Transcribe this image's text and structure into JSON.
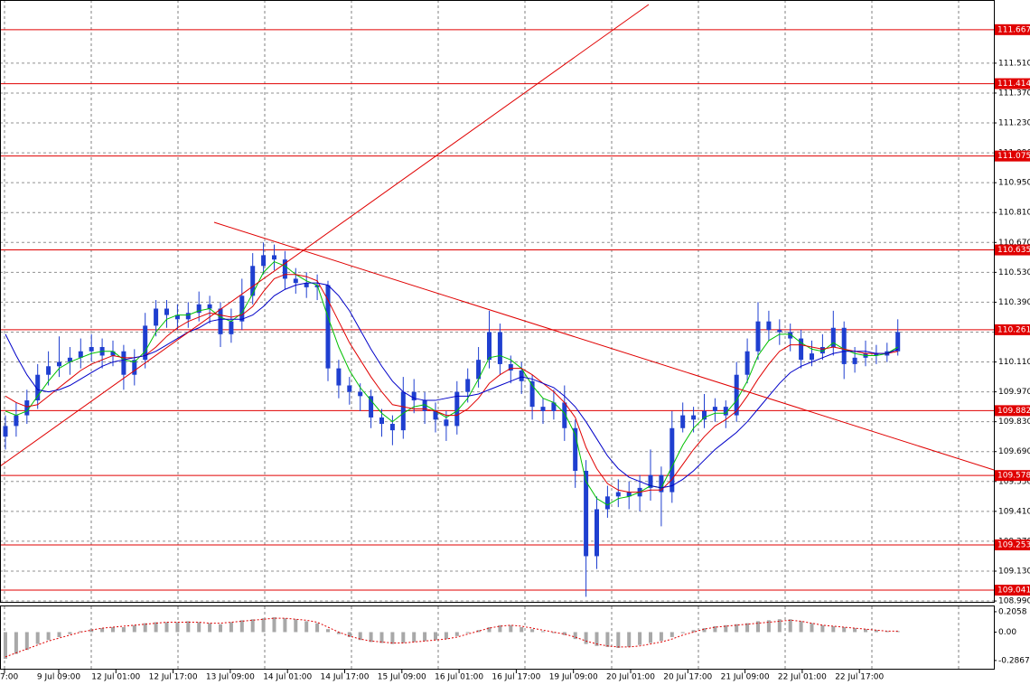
{
  "chart_data": {
    "type": "candlestick",
    "candle_color": "#1f3fd0",
    "open": [
      109.76,
      109.81,
      109.86,
      109.93,
      110.05,
      110.09,
      110.11,
      110.13,
      110.16,
      110.18,
      110.14,
      110.16,
      110.05,
      110.12,
      110.28,
      110.36,
      110.33,
      110.31,
      110.34,
      110.38,
      110.36,
      110.24,
      110.3,
      110.42,
      110.56,
      110.61,
      110.59,
      110.5,
      110.48,
      110.46,
      110.47,
      110.08,
      110.0,
      109.97,
      109.95,
      109.85,
      109.82,
      109.79,
      109.97,
      109.93,
      109.88,
      109.84,
      109.81,
      109.97,
      110.03,
      110.12,
      110.25,
      110.1,
      110.07,
      110.02,
      109.9,
      109.88,
      109.92,
      109.8,
      109.6,
      109.2,
      109.42,
      109.48,
      109.5,
      109.48,
      109.52,
      109.58,
      109.5,
      109.8,
      109.86,
      109.84,
      109.88,
      109.9,
      109.86,
      110.05,
      110.16,
      110.3,
      110.26,
      110.25,
      110.22,
      110.12,
      110.15,
      110.18,
      110.27,
      110.1,
      110.13,
      110.15,
      110.14,
      110.16
    ],
    "high": [
      109.86,
      109.92,
      109.98,
      110.1,
      110.16,
      110.23,
      110.18,
      110.22,
      110.24,
      110.22,
      110.21,
      110.19,
      110.17,
      110.34,
      110.4,
      110.4,
      110.38,
      110.39,
      110.44,
      110.42,
      110.39,
      110.36,
      110.5,
      110.62,
      110.67,
      110.66,
      110.63,
      110.55,
      110.53,
      110.52,
      110.49,
      110.12,
      110.04,
      110.01,
      109.98,
      109.89,
      109.86,
      110.04,
      110.03,
      109.97,
      109.92,
      109.88,
      110.02,
      110.08,
      110.18,
      110.35,
      110.29,
      110.14,
      110.11,
      110.05,
      109.94,
      109.98,
      110.0,
      109.84,
      109.65,
      109.48,
      109.53,
      109.56,
      109.55,
      109.58,
      109.7,
      109.62,
      109.88,
      109.92,
      109.9,
      109.96,
      109.94,
      109.93,
      110.11,
      110.22,
      110.39,
      110.35,
      110.31,
      110.29,
      110.26,
      110.21,
      110.24,
      110.35,
      110.3,
      110.18,
      110.21,
      110.19,
      110.2,
      110.31
    ],
    "low": [
      109.7,
      109.76,
      109.82,
      109.89,
      110.0,
      110.04,
      110.05,
      110.08,
      110.11,
      110.08,
      110.09,
      109.98,
      110.0,
      110.08,
      110.23,
      110.27,
      110.26,
      110.27,
      110.3,
      110.29,
      110.18,
      110.2,
      110.26,
      110.38,
      110.52,
      110.54,
      110.45,
      110.43,
      110.41,
      110.4,
      110.02,
      109.94,
      109.91,
      109.88,
      109.8,
      109.76,
      109.72,
      109.75,
      109.87,
      109.82,
      109.78,
      109.74,
      109.77,
      109.92,
      109.99,
      110.08,
      110.05,
      110.01,
      109.96,
      109.84,
      109.82,
      109.84,
      109.74,
      109.52,
      109.01,
      109.14,
      109.38,
      109.43,
      109.42,
      109.41,
      109.46,
      109.34,
      109.45,
      109.78,
      109.78,
      109.8,
      109.83,
      109.8,
      109.83,
      110.01,
      110.12,
      110.21,
      110.19,
      110.16,
      110.08,
      110.09,
      110.12,
      110.14,
      110.03,
      110.06,
      110.09,
      110.1,
      110.11,
      110.14
    ],
    "close": [
      109.81,
      109.86,
      109.93,
      110.05,
      110.09,
      110.11,
      110.13,
      110.16,
      110.18,
      110.14,
      110.16,
      110.05,
      110.12,
      110.28,
      110.36,
      110.33,
      110.31,
      110.34,
      110.38,
      110.36,
      110.24,
      110.3,
      110.42,
      110.56,
      110.61,
      110.59,
      110.5,
      110.48,
      110.46,
      110.47,
      110.08,
      110.0,
      109.97,
      109.95,
      109.85,
      109.82,
      109.79,
      109.97,
      109.93,
      109.88,
      109.84,
      109.81,
      109.97,
      110.03,
      110.12,
      110.25,
      110.1,
      110.07,
      110.02,
      109.9,
      109.88,
      109.92,
      109.8,
      109.6,
      109.2,
      109.42,
      109.48,
      109.5,
      109.48,
      109.52,
      109.58,
      109.5,
      109.8,
      109.86,
      109.84,
      109.88,
      109.9,
      109.86,
      110.05,
      110.16,
      110.3,
      110.26,
      110.25,
      110.22,
      110.12,
      110.15,
      110.18,
      110.27,
      110.1,
      110.13,
      110.15,
      110.14,
      110.16,
      110.25
    ],
    "series": [
      {
        "color": "#00c000",
        "values": [
          109.88,
          109.86,
          109.88,
          109.95,
          110.02,
          110.08,
          110.11,
          110.13,
          110.15,
          110.16,
          110.16,
          110.12,
          110.11,
          110.16,
          110.25,
          110.31,
          110.33,
          110.33,
          110.35,
          110.36,
          110.32,
          110.3,
          110.34,
          110.43,
          110.53,
          110.58,
          110.56,
          110.52,
          110.49,
          110.47,
          110.32,
          110.18,
          110.07,
          109.99,
          109.93,
          109.87,
          109.83,
          109.87,
          109.9,
          109.91,
          109.88,
          109.85,
          109.88,
          109.94,
          110.03,
          110.13,
          110.14,
          110.12,
          110.08,
          110.0,
          109.94,
          109.92,
          109.87,
          109.77,
          109.55,
          109.47,
          109.44,
          109.47,
          109.48,
          109.5,
          109.53,
          109.52,
          109.62,
          109.72,
          109.8,
          109.85,
          109.87,
          109.87,
          109.93,
          110.02,
          110.14,
          110.21,
          110.24,
          110.24,
          110.2,
          110.17,
          110.16,
          110.2,
          110.17,
          110.15,
          110.14,
          110.14,
          110.15,
          110.18
        ]
      },
      {
        "color": "#e00000",
        "values": [
          109.95,
          109.92,
          109.9,
          109.91,
          109.95,
          109.99,
          110.03,
          110.07,
          110.1,
          110.12,
          110.14,
          110.13,
          110.13,
          110.14,
          110.18,
          110.23,
          110.27,
          110.3,
          110.32,
          110.34,
          110.33,
          110.32,
          110.33,
          110.37,
          110.44,
          110.5,
          110.52,
          110.52,
          110.51,
          110.49,
          110.4,
          110.3,
          110.2,
          110.12,
          110.04,
          109.97,
          109.91,
          109.9,
          109.89,
          109.89,
          109.88,
          109.86,
          109.86,
          109.89,
          109.94,
          110.01,
          110.05,
          110.08,
          110.08,
          110.05,
          110.01,
          109.97,
          109.92,
          109.85,
          109.71,
          109.61,
          109.54,
          109.51,
          109.5,
          109.5,
          109.51,
          109.51,
          109.56,
          109.63,
          109.7,
          109.76,
          109.81,
          109.84,
          109.88,
          109.95,
          110.03,
          110.1,
          110.16,
          110.19,
          110.19,
          110.18,
          110.17,
          110.18,
          110.17,
          110.16,
          110.15,
          110.15,
          110.15,
          110.16
        ]
      },
      {
        "color": "#0000c8",
        "values": [
          110.24,
          110.14,
          110.05,
          109.98,
          109.97,
          109.98,
          110.0,
          110.03,
          110.06,
          110.09,
          110.11,
          110.12,
          110.13,
          110.14,
          110.16,
          110.19,
          110.22,
          110.25,
          110.27,
          110.3,
          110.31,
          110.31,
          110.31,
          110.33,
          110.37,
          110.42,
          110.45,
          110.47,
          110.48,
          110.48,
          110.47,
          110.42,
          110.35,
          110.26,
          110.17,
          110.09,
          110.02,
          109.97,
          109.94,
          109.93,
          109.93,
          109.94,
          109.95,
          109.95,
          109.96,
          109.98,
          110.0,
          110.02,
          110.04,
          110.03,
          110.01,
          109.99,
          109.95,
          109.9,
          109.83,
          109.75,
          109.67,
          109.61,
          109.57,
          109.55,
          109.53,
          109.52,
          109.53,
          109.56,
          109.6,
          109.65,
          109.7,
          109.74,
          109.78,
          109.83,
          109.89,
          109.95,
          110.01,
          110.06,
          110.09,
          110.11,
          110.13,
          110.15,
          110.16,
          110.16,
          110.16,
          110.15,
          110.15,
          110.17
        ]
      }
    ],
    "levels": [
      111.667,
      111.414,
      111.075,
      110.635,
      110.261,
      109.882,
      109.578,
      109.253,
      109.041
    ],
    "level_color": "#e00000",
    "ylim": [
      108.986,
      111.806
    ],
    "yticks": [
      {
        "value": 111.51,
        "label": "111.510"
      },
      {
        "value": 111.37,
        "label": "111.370"
      },
      {
        "value": 111.23,
        "label": "111.230"
      },
      {
        "value": 111.09,
        "label": "111.090"
      },
      {
        "value": 110.95,
        "label": "110.950"
      },
      {
        "value": 110.81,
        "label": "110.810"
      },
      {
        "value": 110.67,
        "label": "110.670"
      },
      {
        "value": 110.53,
        "label": "110.530"
      },
      {
        "value": 110.39,
        "label": "110.390"
      },
      {
        "value": 110.25,
        "label": "110.250"
      },
      {
        "value": 110.11,
        "label": "110.110"
      },
      {
        "value": 109.97,
        "label": "109.970"
      },
      {
        "value": 109.83,
        "label": "109.830"
      },
      {
        "value": 109.69,
        "label": "109.690"
      },
      {
        "value": 109.55,
        "label": "109.550"
      },
      {
        "value": 109.41,
        "label": "109.410"
      },
      {
        "value": 109.27,
        "label": "109.270"
      },
      {
        "value": 109.13,
        "label": "109.130"
      },
      {
        "value": 108.99,
        "label": "108.990"
      }
    ],
    "grid": true,
    "xtick_labels": [
      "7:00",
      "9 Jul 09:00",
      "12 Jul 01:00",
      "12 Jul 17:00",
      "13 Jul 09:00",
      "14 Jul 01:00",
      "14 Jul 17:00",
      "15 Jul 09:00",
      "16 Jul 01:00",
      "16 Jul 17:00",
      "19 Jul 09:00",
      "20 Jul 01:00",
      "20 Jul 17:00",
      "21 Jul 09:00",
      "22 Jul 01:00",
      "22 Jul 17:00"
    ],
    "indicator": {
      "type": "bar",
      "ylim": [
        -0.37,
        0.26
      ],
      "yticks": [
        0.2058,
        {
          "value": 0,
          "label": "0.00"
        },
        -0.2867
      ],
      "histogram_color": "#a8a8a8",
      "signal_color": "#e00000",
      "histogram": [
        -0.27,
        -0.22,
        -0.18,
        -0.12,
        -0.08,
        -0.05,
        -0.02,
        0.01,
        0.03,
        0.04,
        0.05,
        0.05,
        0.07,
        0.09,
        0.1,
        0.1,
        0.1,
        0.11,
        0.1,
        0.09,
        0.08,
        0.1,
        0.12,
        0.13,
        0.14,
        0.15,
        0.14,
        0.13,
        0.11,
        0.09,
        0.03,
        -0.02,
        -0.05,
        -0.08,
        -0.1,
        -0.11,
        -0.12,
        -0.11,
        -0.1,
        -0.09,
        -0.08,
        -0.07,
        -0.04,
        -0.01,
        0.02,
        0.05,
        0.07,
        0.07,
        0.05,
        0.03,
        0.01,
        -0.01,
        -0.03,
        -0.07,
        -0.12,
        -0.14,
        -0.15,
        -0.16,
        -0.15,
        -0.13,
        -0.11,
        -0.09,
        -0.05,
        -0.01,
        0.02,
        0.04,
        0.06,
        0.07,
        0.08,
        0.09,
        0.11,
        0.12,
        0.13,
        0.13,
        0.11,
        0.09,
        0.07,
        0.06,
        0.05,
        0.04,
        0.03,
        0.02,
        0.01,
        0.01
      ],
      "signal": [
        -0.25,
        -0.21,
        -0.17,
        -0.13,
        -0.09,
        -0.06,
        -0.03,
        0.0,
        0.02,
        0.04,
        0.05,
        0.06,
        0.07,
        0.08,
        0.09,
        0.1,
        0.1,
        0.1,
        0.1,
        0.09,
        0.09,
        0.1,
        0.11,
        0.12,
        0.13,
        0.14,
        0.14,
        0.13,
        0.12,
        0.1,
        0.05,
        0.0,
        -0.04,
        -0.07,
        -0.09,
        -0.1,
        -0.11,
        -0.11,
        -0.1,
        -0.09,
        -0.08,
        -0.07,
        -0.05,
        -0.02,
        0.01,
        0.04,
        0.06,
        0.07,
        0.06,
        0.04,
        0.02,
        0.0,
        -0.02,
        -0.05,
        -0.09,
        -0.12,
        -0.14,
        -0.15,
        -0.15,
        -0.14,
        -0.12,
        -0.1,
        -0.07,
        -0.03,
        0.0,
        0.03,
        0.05,
        0.06,
        0.07,
        0.08,
        0.09,
        0.1,
        0.11,
        0.12,
        0.11,
        0.09,
        0.07,
        0.06,
        0.05,
        0.04,
        0.03,
        0.02,
        0.01,
        0.01
      ]
    }
  }
}
